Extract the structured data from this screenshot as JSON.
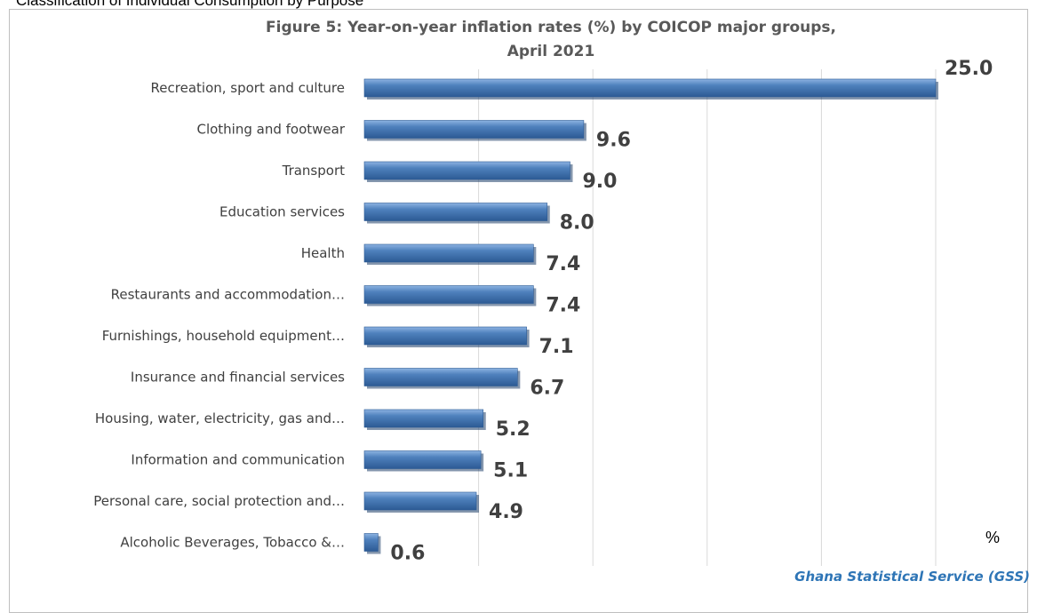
{
  "page": {
    "top_caption": "Classification of Individual Consumption by Purpose",
    "unit_label": "%",
    "source": "Ghana Statistical Service (GSS)"
  },
  "chart_data": {
    "type": "bar",
    "orientation": "horizontal",
    "title_line1": "Figure 5: Year-on-year inflation rates (%) by  COICOP major groups,",
    "title_line2": "April  2021",
    "categories": [
      "Recreation, sport and culture",
      "Clothing and footwear",
      "Transport",
      "Education services",
      "Health",
      "Restaurants and accommodation…",
      "Furnishings, household equipment…",
      "Insurance and financial services",
      "Housing, water, electricity, gas and…",
      "Information and communication",
      "Personal care, social protection and…",
      "Alcoholic Beverages, Tobacco &…"
    ],
    "values": [
      25.0,
      9.6,
      9.0,
      8.0,
      7.4,
      7.4,
      7.1,
      6.7,
      5.2,
      5.1,
      4.9,
      0.6
    ],
    "value_labels": [
      "25.0",
      "9.6",
      "9.0",
      "8.0",
      "7.4",
      "7.4",
      "7.1",
      "6.7",
      "5.2",
      "5.1",
      "4.9",
      "0.6"
    ],
    "xlim": [
      0,
      25
    ],
    "x_gridlines": [
      0,
      5,
      10,
      15,
      20,
      25
    ],
    "grid": true,
    "bar_color": "#4f81bd",
    "legend": "none"
  }
}
